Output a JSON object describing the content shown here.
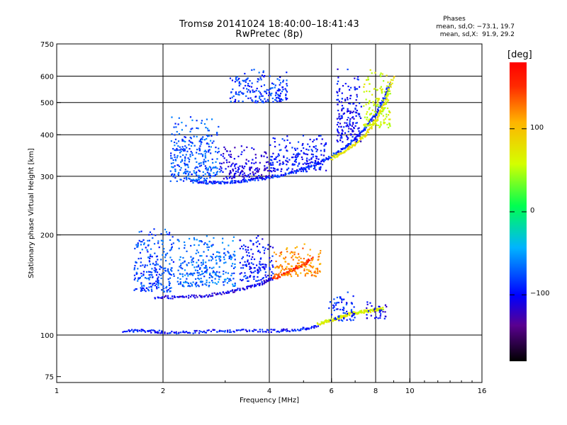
{
  "header": {
    "title_line1": "Tromsø 20141024 18:40:00–18:41:43",
    "title_line2": "RwPretec (8p)"
  },
  "stats": {
    "heading": "Phases",
    "line_o": "mean, sd,O: −73.1, 19.7",
    "line_x": "mean, sd,X:  91.9, 29.2"
  },
  "colorbar": {
    "title": "[deg]",
    "ticks": [
      {
        "value": 100,
        "label": "100"
      },
      {
        "value": 0,
        "label": "0"
      },
      {
        "value": -100,
        "label": "−100"
      }
    ],
    "range": [
      -180,
      180
    ]
  },
  "chart_data": {
    "type": "scatter",
    "title": "Tromsø 20141024 18:40:00–18:41:43",
    "subtitle": "RwPretec (8p)",
    "xlabel": "Frequency [MHz]",
    "ylabel": "Stationary phase Virtual Height [km]",
    "x_scale": "log",
    "y_scale": "log",
    "xlim": [
      1,
      16
    ],
    "ylim": [
      72,
      750
    ],
    "x_ticks": [
      {
        "value": 1,
        "label": "1"
      },
      {
        "value": 2,
        "label": "2"
      },
      {
        "value": 4,
        "label": "4"
      },
      {
        "value": 6,
        "label": "6"
      },
      {
        "value": 8,
        "label": "8"
      },
      {
        "value": 10,
        "label": "10"
      },
      {
        "value": 16,
        "label": "16"
      }
    ],
    "y_ticks": [
      {
        "value": 75,
        "label": "75"
      },
      {
        "value": 100,
        "label": "100"
      },
      {
        "value": 200,
        "label": "200"
      },
      {
        "value": 300,
        "label": "300"
      },
      {
        "value": 400,
        "label": "400"
      },
      {
        "value": 500,
        "label": "500"
      },
      {
        "value": 600,
        "label": "600"
      },
      {
        "value": 750,
        "label": "750"
      }
    ],
    "grid_x": [
      2,
      4,
      6,
      8,
      10
    ],
    "grid_y": [
      100,
      200,
      300,
      400,
      500,
      600
    ],
    "color_by": "phase (deg)",
    "traces": [
      {
        "x": [
          1.55,
          1.8,
          2.0,
          2.4,
          2.9,
          3.5,
          4.2,
          4.9,
          5.5
        ],
        "y": [
          103,
          103,
          102,
          102,
          103,
          103,
          103,
          104,
          106
        ],
        "phase": -95
      },
      {
        "x": [
          5.5,
          5.8,
          6.2,
          6.5,
          6.8,
          7.2,
          7.6,
          8.0,
          8.4
        ],
        "y": [
          108,
          110,
          112,
          114,
          116,
          117,
          118,
          119,
          120
        ],
        "phase": 70
      },
      {
        "x": [
          1.9,
          2.2,
          2.6,
          3.0,
          3.4,
          3.8,
          4.1
        ],
        "y": [
          130,
          130,
          131,
          134,
          138,
          143,
          148
        ],
        "phase": -110
      },
      {
        "x": [
          4.1,
          4.4,
          4.7,
          5.0,
          5.3
        ],
        "y": [
          148,
          152,
          158,
          163,
          170
        ],
        "phase": 150
      },
      {
        "x": [
          2.4,
          2.7,
          3.0,
          3.3,
          3.6,
          4.0,
          4.5,
          5.0,
          5.5,
          6.0,
          6.5,
          7.0,
          7.5,
          8.0,
          8.4,
          8.8
        ],
        "y": [
          290,
          287,
          288,
          290,
          293,
          298,
          305,
          315,
          328,
          345,
          365,
          390,
          420,
          460,
          510,
          570
        ],
        "phase": -90
      },
      {
        "x": [
          6.0,
          6.5,
          7.0,
          7.5,
          8.0,
          8.5,
          9.0
        ],
        "y": [
          340,
          355,
          375,
          400,
          440,
          500,
          600
        ],
        "phase": 80
      }
    ],
    "clusters": [
      {
        "x": [
          1.65,
          2.15
        ],
        "y": [
          135,
          210
        ],
        "phase": -80
      },
      {
        "x": [
          2.2,
          3.2
        ],
        "y": [
          140,
          200
        ],
        "phase": -70
      },
      {
        "x": [
          3.3,
          4.1
        ],
        "y": [
          145,
          200
        ],
        "phase": -95
      },
      {
        "x": [
          4.1,
          5.6
        ],
        "y": [
          150,
          190
        ],
        "phase": 120
      },
      {
        "x": [
          2.1,
          2.9
        ],
        "y": [
          290,
          460
        ],
        "phase": -75
      },
      {
        "x": [
          2.9,
          4.0
        ],
        "y": [
          295,
          370
        ],
        "phase": -110
      },
      {
        "x": [
          4.0,
          5.8
        ],
        "y": [
          310,
          400
        ],
        "phase": -95
      },
      {
        "x": [
          3.1,
          4.5
        ],
        "y": [
          500,
          630
        ],
        "phase": -85
      },
      {
        "x": [
          6.2,
          7.3
        ],
        "y": [
          380,
          640
        ],
        "phase": -100
      },
      {
        "x": [
          7.4,
          8.8
        ],
        "y": [
          420,
          640
        ],
        "phase": 60
      },
      {
        "x": [
          5.9,
          7.0
        ],
        "y": [
          110,
          135
        ],
        "phase": -90
      },
      {
        "x": [
          7.5,
          8.6
        ],
        "y": [
          112,
          126
        ],
        "phase": -105
      }
    ]
  }
}
